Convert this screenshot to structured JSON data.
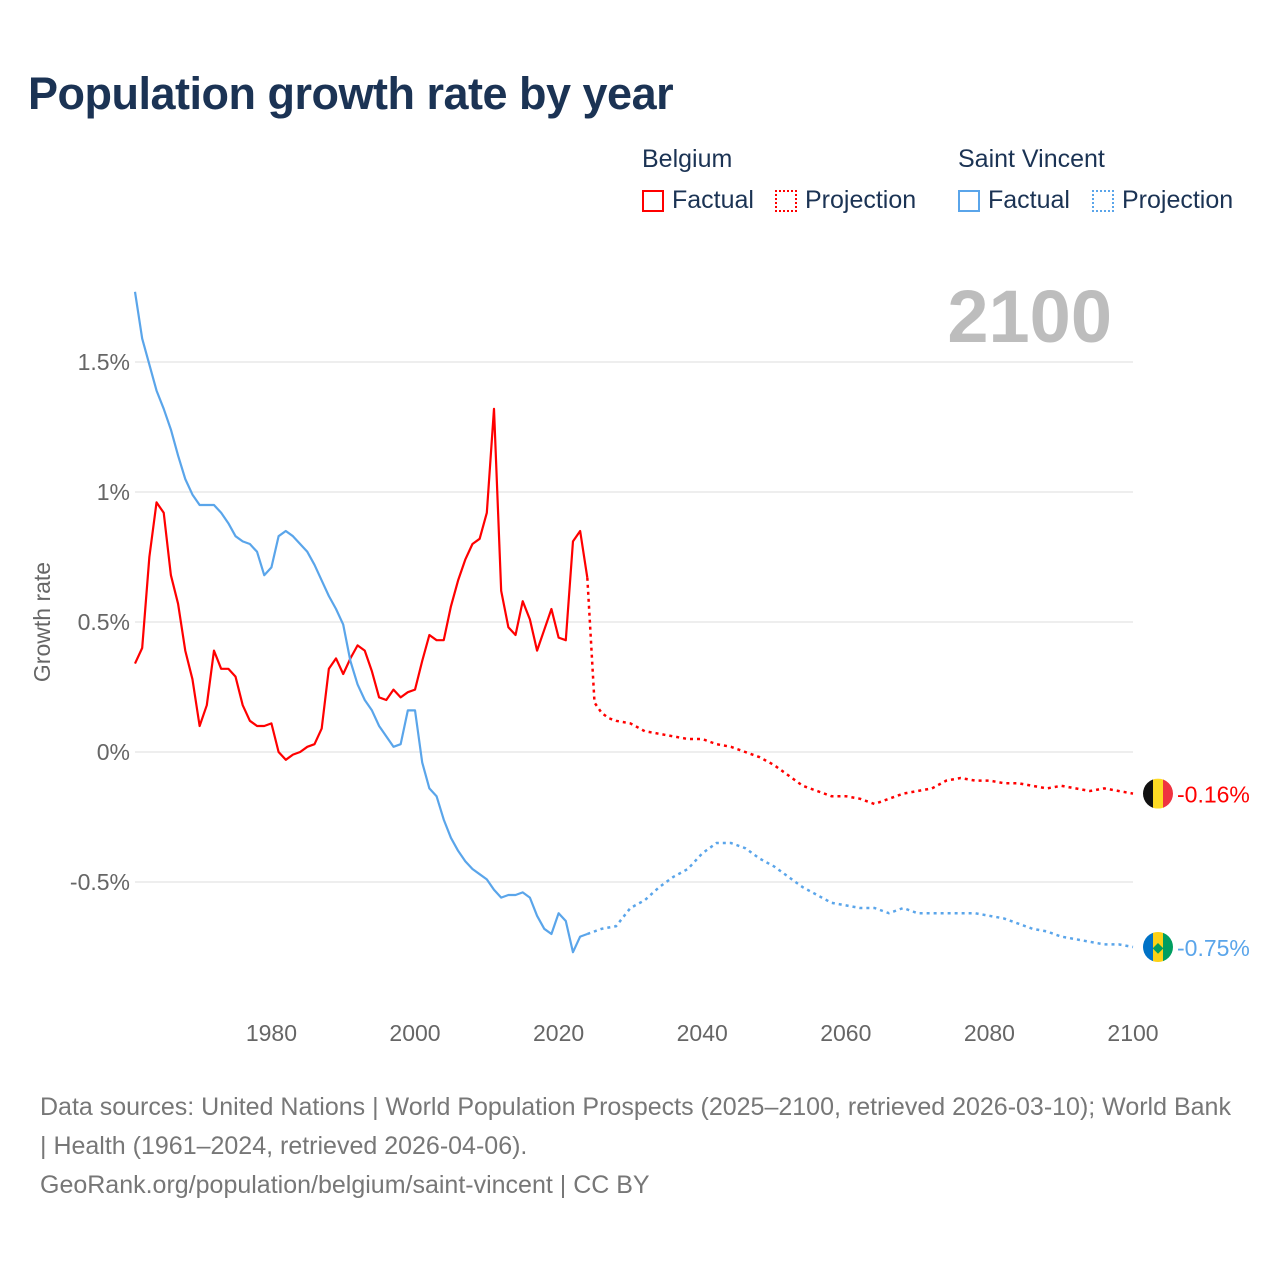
{
  "title": "Population growth rate by year",
  "legend": {
    "groups": [
      {
        "name": "Belgium",
        "factual": "Factual",
        "projection": "Projection",
        "color": "#ff0000"
      },
      {
        "name": "Saint Vincent",
        "factual": "Factual",
        "projection": "Projection",
        "color": "#5aa5ea"
      }
    ]
  },
  "year_label": "2100",
  "footer": {
    "sources": "Data sources: United Nations | World Population Prospects (2025–2100, retrieved 2026-03-10); World Bank | Health (1961–2024, retrieved 2026-04-06).",
    "credit": "GeoRank.org/population/belgium/saint-vincent | CC BY"
  },
  "chart_data": {
    "type": "line",
    "title": "Population growth rate by year",
    "xlabel": "",
    "ylabel": "Growth rate",
    "xlim": [
      1961,
      2100
    ],
    "ylim": [
      -0.95,
      1.8
    ],
    "x_ticks": [
      1980,
      2000,
      2020,
      2040,
      2060,
      2080,
      2100
    ],
    "x_tick_labels": [
      "1980",
      "2000",
      "2020",
      "2040",
      "2060",
      "2080",
      "2100"
    ],
    "y_ticks": [
      1.5,
      1,
      0.5,
      0,
      -0.5
    ],
    "y_tick_labels": [
      "1.5%",
      "1%",
      "0.5%",
      "0%",
      "-0.5%"
    ],
    "grid": true,
    "legend_position": "top-right",
    "series": [
      {
        "name": "Belgium",
        "color": "#ff0000",
        "end_label": "-0.16%",
        "factual": {
          "x_start": 1961,
          "values": [
            0.34,
            0.4,
            0.75,
            0.96,
            0.92,
            0.68,
            0.57,
            0.39,
            0.28,
            0.1,
            0.18,
            0.39,
            0.32,
            0.32,
            0.29,
            0.18,
            0.12,
            0.1,
            0.1,
            0.11,
            0.0,
            -0.03,
            -0.01,
            0.0,
            0.02,
            0.03,
            0.09,
            0.32,
            0.36,
            0.3,
            0.36,
            0.41,
            0.39,
            0.31,
            0.21,
            0.2,
            0.24,
            0.21,
            0.23,
            0.24,
            0.35,
            0.45,
            0.43,
            0.43,
            0.56,
            0.66,
            0.74,
            0.8,
            0.82,
            0.92,
            1.32,
            0.62,
            0.48,
            0.45,
            0.58,
            0.51,
            0.39,
            0.47,
            0.55,
            0.44,
            0.43,
            0.81,
            0.85,
            0.67
          ]
        },
        "projection": {
          "x": [
            2024,
            2025,
            2026,
            2027,
            2028,
            2030,
            2032,
            2034,
            2036,
            2038,
            2040,
            2042,
            2044,
            2046,
            2048,
            2050,
            2052,
            2054,
            2056,
            2058,
            2060,
            2062,
            2064,
            2066,
            2068,
            2070,
            2072,
            2074,
            2076,
            2078,
            2080,
            2082,
            2084,
            2086,
            2088,
            2090,
            2092,
            2094,
            2096,
            2098,
            2100
          ],
          "y": [
            0.67,
            0.19,
            0.15,
            0.13,
            0.12,
            0.11,
            0.08,
            0.07,
            0.06,
            0.05,
            0.05,
            0.03,
            0.02,
            0.0,
            -0.02,
            -0.05,
            -0.09,
            -0.13,
            -0.15,
            -0.17,
            -0.17,
            -0.18,
            -0.2,
            -0.18,
            -0.16,
            -0.15,
            -0.14,
            -0.11,
            -0.1,
            -0.11,
            -0.11,
            -0.12,
            -0.12,
            -0.13,
            -0.14,
            -0.13,
            -0.14,
            -0.15,
            -0.14,
            -0.15,
            -0.16
          ]
        }
      },
      {
        "name": "Saint Vincent",
        "color": "#5aa5ea",
        "end_label": "-0.75%",
        "factual": {
          "x_start": 1961,
          "values": [
            1.77,
            1.59,
            1.49,
            1.39,
            1.32,
            1.24,
            1.14,
            1.05,
            0.99,
            0.95,
            0.95,
            0.95,
            0.92,
            0.88,
            0.83,
            0.81,
            0.8,
            0.77,
            0.68,
            0.71,
            0.83,
            0.85,
            0.83,
            0.8,
            0.77,
            0.72,
            0.66,
            0.6,
            0.55,
            0.49,
            0.35,
            0.26,
            0.2,
            0.16,
            0.1,
            0.06,
            0.02,
            0.03,
            0.16,
            0.16,
            -0.04,
            -0.14,
            -0.17,
            -0.26,
            -0.33,
            -0.38,
            -0.42,
            -0.45,
            -0.47,
            -0.49,
            -0.53,
            -0.56,
            -0.55,
            -0.55,
            -0.54,
            -0.56,
            -0.63,
            -0.68,
            -0.7,
            -0.62,
            -0.65,
            -0.77,
            -0.71,
            -0.7
          ]
        },
        "projection": {
          "x": [
            2024,
            2026,
            2028,
            2030,
            2032,
            2034,
            2036,
            2038,
            2040,
            2042,
            2044,
            2046,
            2048,
            2050,
            2052,
            2054,
            2056,
            2058,
            2060,
            2062,
            2064,
            2066,
            2068,
            2070,
            2072,
            2074,
            2076,
            2078,
            2080,
            2082,
            2084,
            2086,
            2088,
            2090,
            2092,
            2094,
            2096,
            2098,
            2100
          ],
          "y": [
            -0.7,
            -0.68,
            -0.67,
            -0.6,
            -0.57,
            -0.52,
            -0.48,
            -0.45,
            -0.39,
            -0.35,
            -0.35,
            -0.37,
            -0.41,
            -0.44,
            -0.48,
            -0.52,
            -0.55,
            -0.58,
            -0.59,
            -0.6,
            -0.6,
            -0.62,
            -0.6,
            -0.62,
            -0.62,
            -0.62,
            -0.62,
            -0.62,
            -0.63,
            -0.64,
            -0.66,
            -0.68,
            -0.69,
            -0.71,
            -0.72,
            -0.73,
            -0.74,
            -0.74,
            -0.75
          ]
        }
      }
    ]
  }
}
